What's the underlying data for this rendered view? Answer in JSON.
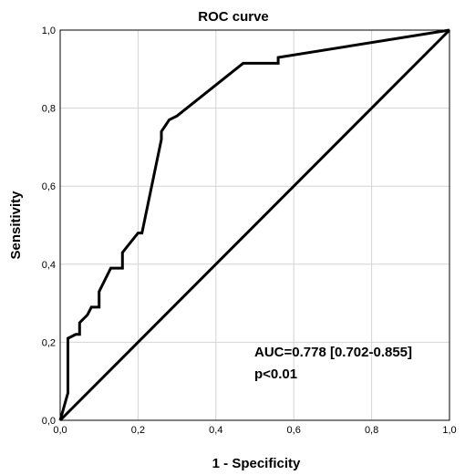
{
  "chart_data": {
    "type": "line",
    "title": "ROC curve",
    "xlabel": "1 - Specificity",
    "ylabel": "Sensitivity",
    "xlim": [
      0,
      1
    ],
    "ylim": [
      0,
      1
    ],
    "x_ticks": [
      "0,0",
      "0,2",
      "0,4",
      "0,6",
      "0,8",
      "1,0"
    ],
    "y_ticks": [
      "0,0",
      "0,2",
      "0,4",
      "0,6",
      "0,8",
      "1,0"
    ],
    "grid": true,
    "series": [
      {
        "points": [
          [
            0,
            0
          ],
          [
            0.02,
            0.07
          ],
          [
            0.02,
            0.21
          ],
          [
            0.04,
            0.22
          ],
          [
            0.05,
            0.22
          ],
          [
            0.05,
            0.25
          ],
          [
            0.07,
            0.27
          ],
          [
            0.08,
            0.29
          ],
          [
            0.1,
            0.29
          ],
          [
            0.1,
            0.33
          ],
          [
            0.13,
            0.39
          ],
          [
            0.16,
            0.39
          ],
          [
            0.16,
            0.43
          ],
          [
            0.2,
            0.48
          ],
          [
            0.21,
            0.48
          ],
          [
            0.26,
            0.72
          ],
          [
            0.26,
            0.74
          ],
          [
            0.28,
            0.77
          ],
          [
            0.3,
            0.78
          ],
          [
            0.47,
            0.915
          ],
          [
            0.56,
            0.915
          ],
          [
            0.56,
            0.93
          ],
          [
            1,
            1
          ]
        ]
      },
      {
        "points": [
          [
            0,
            0
          ],
          [
            1,
            1
          ]
        ]
      }
    ],
    "annotations": [
      "AUC=0.778 [0.702-0.855]",
      "p<0.01"
    ]
  }
}
